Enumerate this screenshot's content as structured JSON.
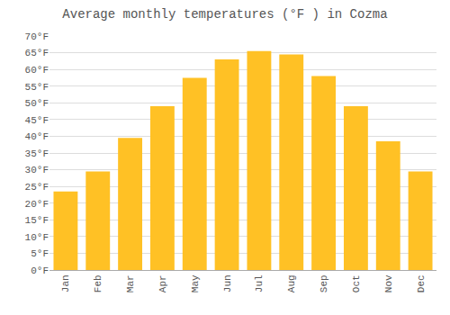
{
  "chart_data": {
    "type": "bar",
    "title": "Average monthly temperatures (°F ) in Cozma",
    "categories": [
      "Jan",
      "Feb",
      "Mar",
      "Apr",
      "May",
      "Jun",
      "Jul",
      "Aug",
      "Sep",
      "Oct",
      "Nov",
      "Dec"
    ],
    "values": [
      23.5,
      29.5,
      39.5,
      49.0,
      57.5,
      63.0,
      65.5,
      64.5,
      58.0,
      49.0,
      38.5,
      29.5
    ],
    "color": "#FFC125",
    "ylim": [
      0,
      70
    ],
    "yticks": [
      {
        "value": 0,
        "label": "0°F"
      },
      {
        "value": 5,
        "label": "5°F"
      },
      {
        "value": 10,
        "label": "10°F"
      },
      {
        "value": 15,
        "label": "15°F"
      },
      {
        "value": 20,
        "label": "20°F"
      },
      {
        "value": 25,
        "label": "25°F"
      },
      {
        "value": 30,
        "label": "30°F"
      },
      {
        "value": 35,
        "label": "35°F"
      },
      {
        "value": 40,
        "label": "40°F"
      },
      {
        "value": 45,
        "label": "45°F"
      },
      {
        "value": 50,
        "label": "50°F"
      },
      {
        "value": 55,
        "label": "55°F"
      },
      {
        "value": 60,
        "label": "60°F"
      },
      {
        "value": 65,
        "label": "65°F"
      },
      {
        "value": 70,
        "label": "70°F"
      }
    ],
    "grid": true
  }
}
